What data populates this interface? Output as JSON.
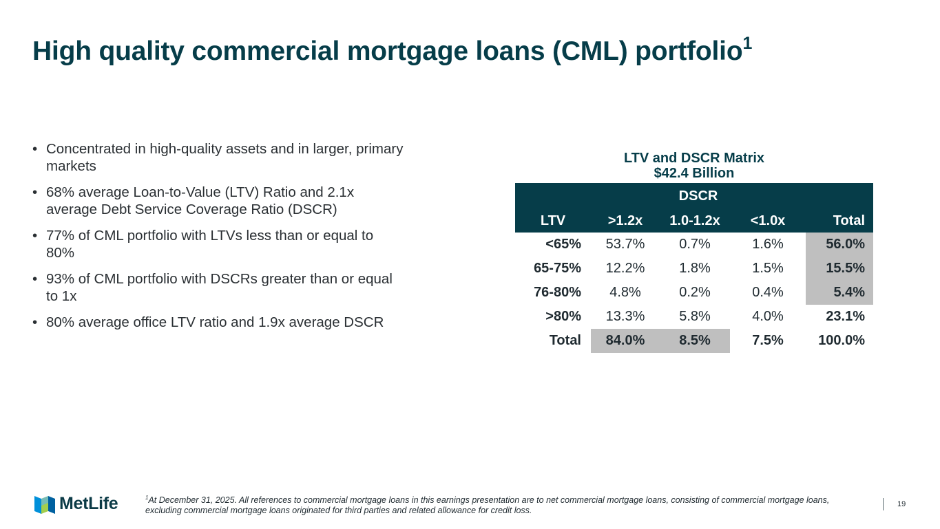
{
  "slide": {
    "title": "High quality commercial mortgage loans (CML) portfolio",
    "title_superscript": "1",
    "bullets": [
      "Concentrated in high-quality assets and in larger, primary markets",
      "68% average Loan-to-Value (LTV) Ratio and 2.1x average Debt Service Coverage Ratio (DSCR)",
      "77% of CML portfolio with LTVs less than or equal to 80%",
      "93% of CML portfolio with DSCRs greater than or equal to 1x",
      "80% average office LTV ratio and 1.9x average DSCR"
    ],
    "bullet_glyph": "•"
  },
  "matrix": {
    "title": "LTV and DSCR Matrix",
    "subtitle": "$42.4 Billion",
    "group_header": "DSCR",
    "columns": [
      "LTV",
      ">1.2x",
      "1.0-1.2x",
      "<1.0x",
      "Total"
    ],
    "rows": [
      {
        "label": "<65%",
        "values": [
          "53.7%",
          "0.7%",
          "1.6%",
          "56.0%"
        ]
      },
      {
        "label": "65-75%",
        "values": [
          "12.2%",
          "1.8%",
          "1.5%",
          "15.5%"
        ]
      },
      {
        "label": "76-80%",
        "values": [
          "4.8%",
          "0.2%",
          "0.4%",
          "5.4%"
        ]
      },
      {
        "label": ">80%",
        "values": [
          "13.3%",
          "5.8%",
          "4.0%",
          "23.1%"
        ]
      },
      {
        "label": "Total",
        "values": [
          "84.0%",
          "8.5%",
          "7.5%",
          "100.0%"
        ]
      }
    ],
    "colors": {
      "header": "#063d49",
      "highlight": "#bfbfbf"
    }
  },
  "footer": {
    "logo_text": "MetLife",
    "footnote_marker": "1",
    "footnote": "At December 31, 2025. All references to commercial mortgage loans in this earnings presentation are to net commercial mortgage loans, consisting of commercial mortgage loans, excluding commercial mortgage loans originated for third parties and related allowance for credit loss.",
    "page_number": "19"
  }
}
